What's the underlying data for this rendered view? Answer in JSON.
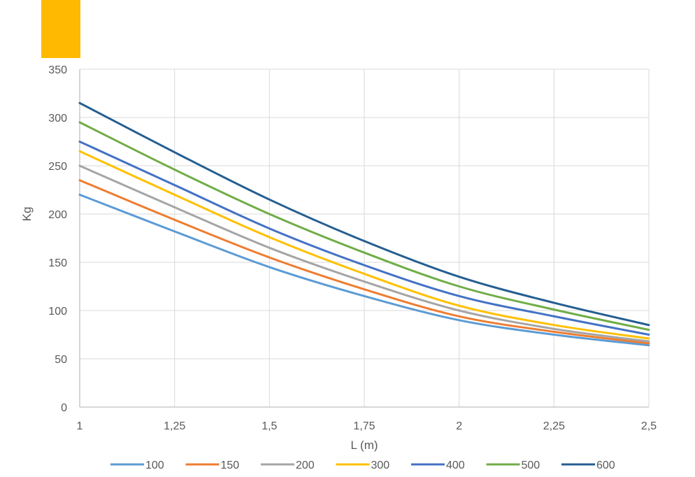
{
  "accent_color": "#FFB900",
  "chart_data": {
    "type": "line",
    "xlabel": "L (m)",
    "ylabel": "Kg",
    "xlim": [
      1,
      2.5
    ],
    "ylim": [
      0,
      350
    ],
    "x_ticks": [
      1,
      1.25,
      1.5,
      1.75,
      2,
      2.25,
      2.5
    ],
    "x_tick_labels": [
      "1",
      "1,25",
      "1,5",
      "1,75",
      "2",
      "2,25",
      "2,5"
    ],
    "y_ticks": [
      0,
      50,
      100,
      150,
      200,
      250,
      300,
      350
    ],
    "y_tick_labels": [
      "0",
      "50",
      "100",
      "150",
      "200",
      "250",
      "300",
      "350"
    ],
    "grid": true,
    "legend_position": "bottom",
    "x": [
      1,
      1.25,
      1.5,
      1.75,
      2,
      2.25,
      2.5
    ],
    "series": [
      {
        "name": "100",
        "color": "#5B9BD5",
        "values": [
          220,
          182,
          145,
          115,
          90,
          75,
          64
        ]
      },
      {
        "name": "150",
        "color": "#ED7D31",
        "values": [
          235,
          194,
          155,
          122,
          94,
          78,
          66
        ]
      },
      {
        "name": "200",
        "color": "#A5A5A5",
        "values": [
          250,
          207,
          165,
          130,
          100,
          81,
          68
        ]
      },
      {
        "name": "300",
        "color": "#FFC000",
        "values": [
          265,
          220,
          176,
          138,
          105,
          85,
          71
        ]
      },
      {
        "name": "400",
        "color": "#4472C4",
        "values": [
          275,
          230,
          185,
          147,
          115,
          94,
          75
        ]
      },
      {
        "name": "500",
        "color": "#70AD47",
        "values": [
          295,
          246,
          200,
          160,
          125,
          101,
          80
        ]
      },
      {
        "name": "600",
        "color": "#255E91",
        "values": [
          315,
          264,
          215,
          172,
          135,
          108,
          85
        ]
      }
    ]
  }
}
